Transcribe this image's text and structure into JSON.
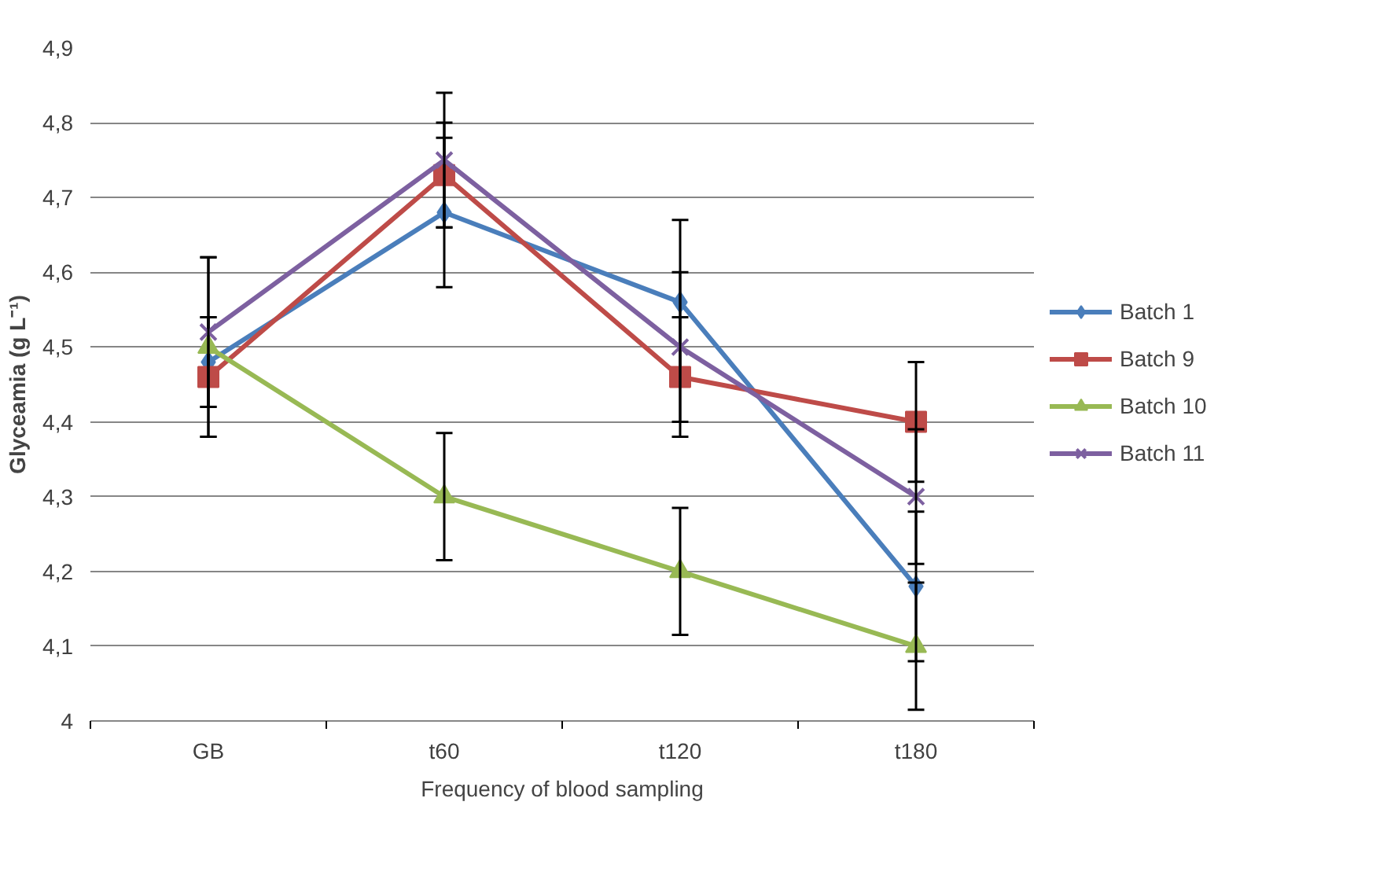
{
  "chart_data": {
    "type": "line",
    "xlabel": "Frequency of blood sampling",
    "ylabel": "Glyceamia (g L⁻¹)",
    "categories": [
      "GB",
      "t60",
      "t120",
      "t180"
    ],
    "series": [
      {
        "name": "Batch 1",
        "color": "#4a7ebb",
        "marker": "diamond",
        "values": [
          4.48,
          4.68,
          4.56,
          4.18
        ],
        "errors": [
          0.06,
          0.1,
          0.11,
          0.1
        ]
      },
      {
        "name": "Batch 9",
        "color": "#be4b48",
        "marker": "square",
        "values": [
          4.46,
          4.73,
          4.46,
          4.4
        ],
        "errors": [
          0.08,
          0.07,
          0.08,
          0.08
        ]
      },
      {
        "name": "Batch 10",
        "color": "#98b954",
        "marker": "triangle",
        "values": [
          4.5,
          4.3,
          4.2,
          4.1
        ],
        "errors": [
          0.12,
          0.085,
          0.085,
          0.085
        ]
      },
      {
        "name": "Batch 11",
        "color": "#7d60a0",
        "marker": "x",
        "values": [
          4.52,
          4.75,
          4.5,
          4.3
        ],
        "errors": [
          0.1,
          0.09,
          0.1,
          0.09
        ]
      }
    ],
    "ylim": [
      4,
      4.9
    ],
    "yticks": [
      {
        "value": 4,
        "label": "4"
      },
      {
        "value": 4.1,
        "label": "4,1"
      },
      {
        "value": 4.2,
        "label": "4,2"
      },
      {
        "value": 4.3,
        "label": "4,3"
      },
      {
        "value": 4.4,
        "label": "4,4"
      },
      {
        "value": 4.5,
        "label": "4,5"
      },
      {
        "value": 4.6,
        "label": "4,6"
      },
      {
        "value": 4.7,
        "label": "4,7"
      },
      {
        "value": 4.8,
        "label": "4,8"
      },
      {
        "value": 4.9,
        "label": "4,9"
      }
    ],
    "grid": "y",
    "legend": "right",
    "line_style": "solid"
  }
}
